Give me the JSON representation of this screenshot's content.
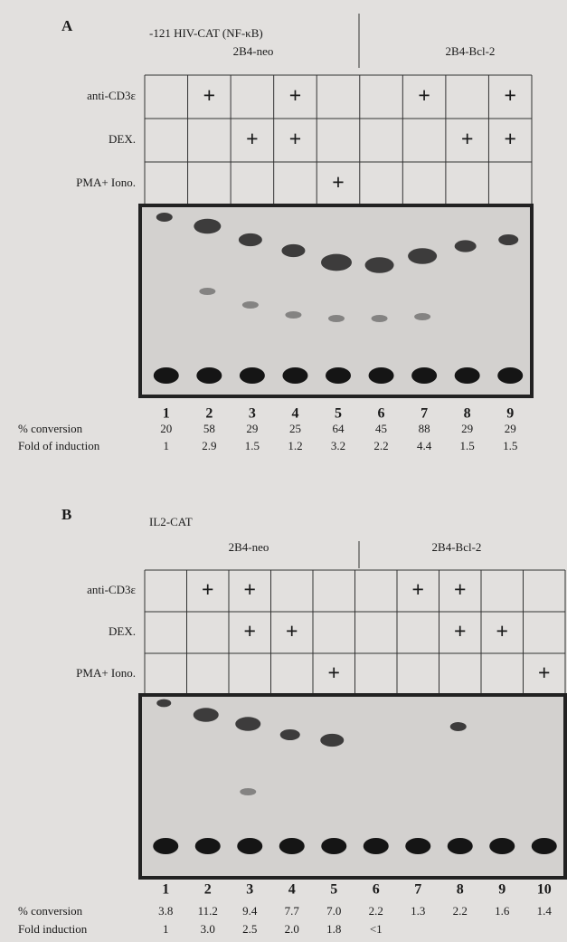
{
  "panels": [
    {
      "label": "A",
      "construct": "-121 HIV-CAT (NF-κB)",
      "groups": [
        "2B4-neo",
        "2B4-Bcl-2"
      ],
      "treatments": [
        {
          "name": "anti-CD3ε",
          "marks": [
            null,
            "+",
            null,
            "+",
            null,
            null,
            "+",
            null,
            "+"
          ]
        },
        {
          "name": "DEX.",
          "marks": [
            null,
            null,
            "+",
            "+",
            null,
            null,
            null,
            "+",
            "+"
          ]
        },
        {
          "name": "PMA+ Iono.",
          "marks": [
            null,
            null,
            null,
            null,
            "+",
            null,
            null,
            null,
            null
          ]
        }
      ],
      "lanes": [
        "1",
        "2",
        "3",
        "4",
        "5",
        "6",
        "7",
        "8",
        "9"
      ],
      "measures": [
        {
          "name": "% conversion",
          "values": [
            "20",
            "58",
            "29",
            "25",
            "64",
            "45",
            "88",
            "29",
            "29"
          ]
        },
        {
          "name": "Fold of induction",
          "values": [
            "1",
            "2.9",
            "1.5",
            "1.2",
            "3.2",
            "2.2",
            "4.4",
            "1.5",
            "1.5"
          ]
        }
      ]
    },
    {
      "label": "B",
      "construct": "IL2-CAT",
      "groups": [
        "2B4-neo",
        "2B4-Bcl-2"
      ],
      "treatments": [
        {
          "name": "anti-CD3ε",
          "marks": [
            null,
            "+",
            "+",
            null,
            null,
            null,
            "+",
            "+",
            null,
            null
          ]
        },
        {
          "name": "DEX.",
          "marks": [
            null,
            null,
            "+",
            "+",
            null,
            null,
            null,
            "+",
            "+",
            null
          ]
        },
        {
          "name": "PMA+ Iono.",
          "marks": [
            null,
            null,
            null,
            null,
            "+",
            null,
            null,
            null,
            null,
            "+"
          ]
        }
      ],
      "lanes": [
        "1",
        "2",
        "3",
        "4",
        "5",
        "6",
        "7",
        "8",
        "9",
        "10"
      ],
      "measures": [
        {
          "name": "% conversion",
          "values": [
            "3.8",
            "11.2",
            "9.4",
            "7.7",
            "7.0",
            "2.2",
            "1.3",
            "2.2",
            "1.6",
            "1.4"
          ]
        },
        {
          "name": "Fold induction",
          "values": [
            "1",
            "3.0",
            "2.5",
            "2.0",
            "1.8",
            "<1"
          ]
        }
      ]
    }
  ]
}
